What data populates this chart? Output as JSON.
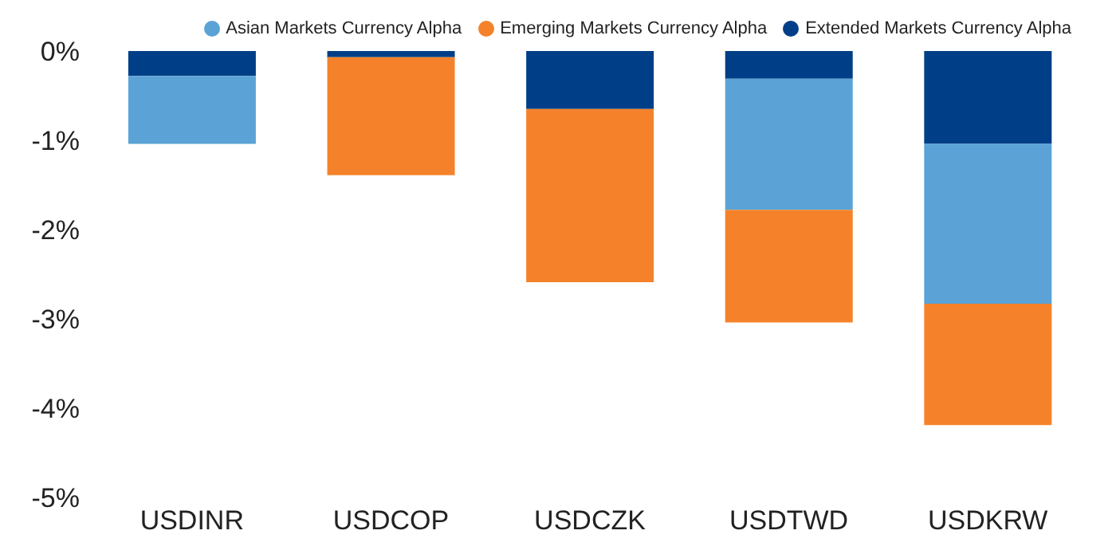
{
  "chart_data": {
    "type": "bar",
    "stacked": true,
    "categories": [
      "USDINR",
      "USDCOP",
      "USDCZK",
      "USDTWD",
      "USDKRW"
    ],
    "series": [
      {
        "name": "Extended Markets Currency Alpha",
        "color": "#003f87",
        "values": [
          -0.28,
          -0.07,
          -0.65,
          -0.31,
          -1.04
        ]
      },
      {
        "name": "Asian Markets Currency Alpha",
        "color": "#5ba3d6",
        "values": [
          -0.76,
          null,
          null,
          -1.47,
          -1.79
        ]
      },
      {
        "name": "Emerging Markets Currency Alpha",
        "color": "#f5822a",
        "values": [
          null,
          -1.32,
          -1.94,
          -1.26,
          -1.36
        ]
      }
    ],
    "ylim": [
      -5,
      0
    ],
    "yticks": [
      {
        "value": 0,
        "label": "0%"
      },
      {
        "value": -1,
        "label": "-1%"
      },
      {
        "value": -2,
        "label": "-2%"
      },
      {
        "value": -3,
        "label": "-3%"
      },
      {
        "value": -4,
        "label": "-4%"
      },
      {
        "value": -5,
        "label": "-5%"
      }
    ],
    "grid": false,
    "legend": "top right"
  }
}
